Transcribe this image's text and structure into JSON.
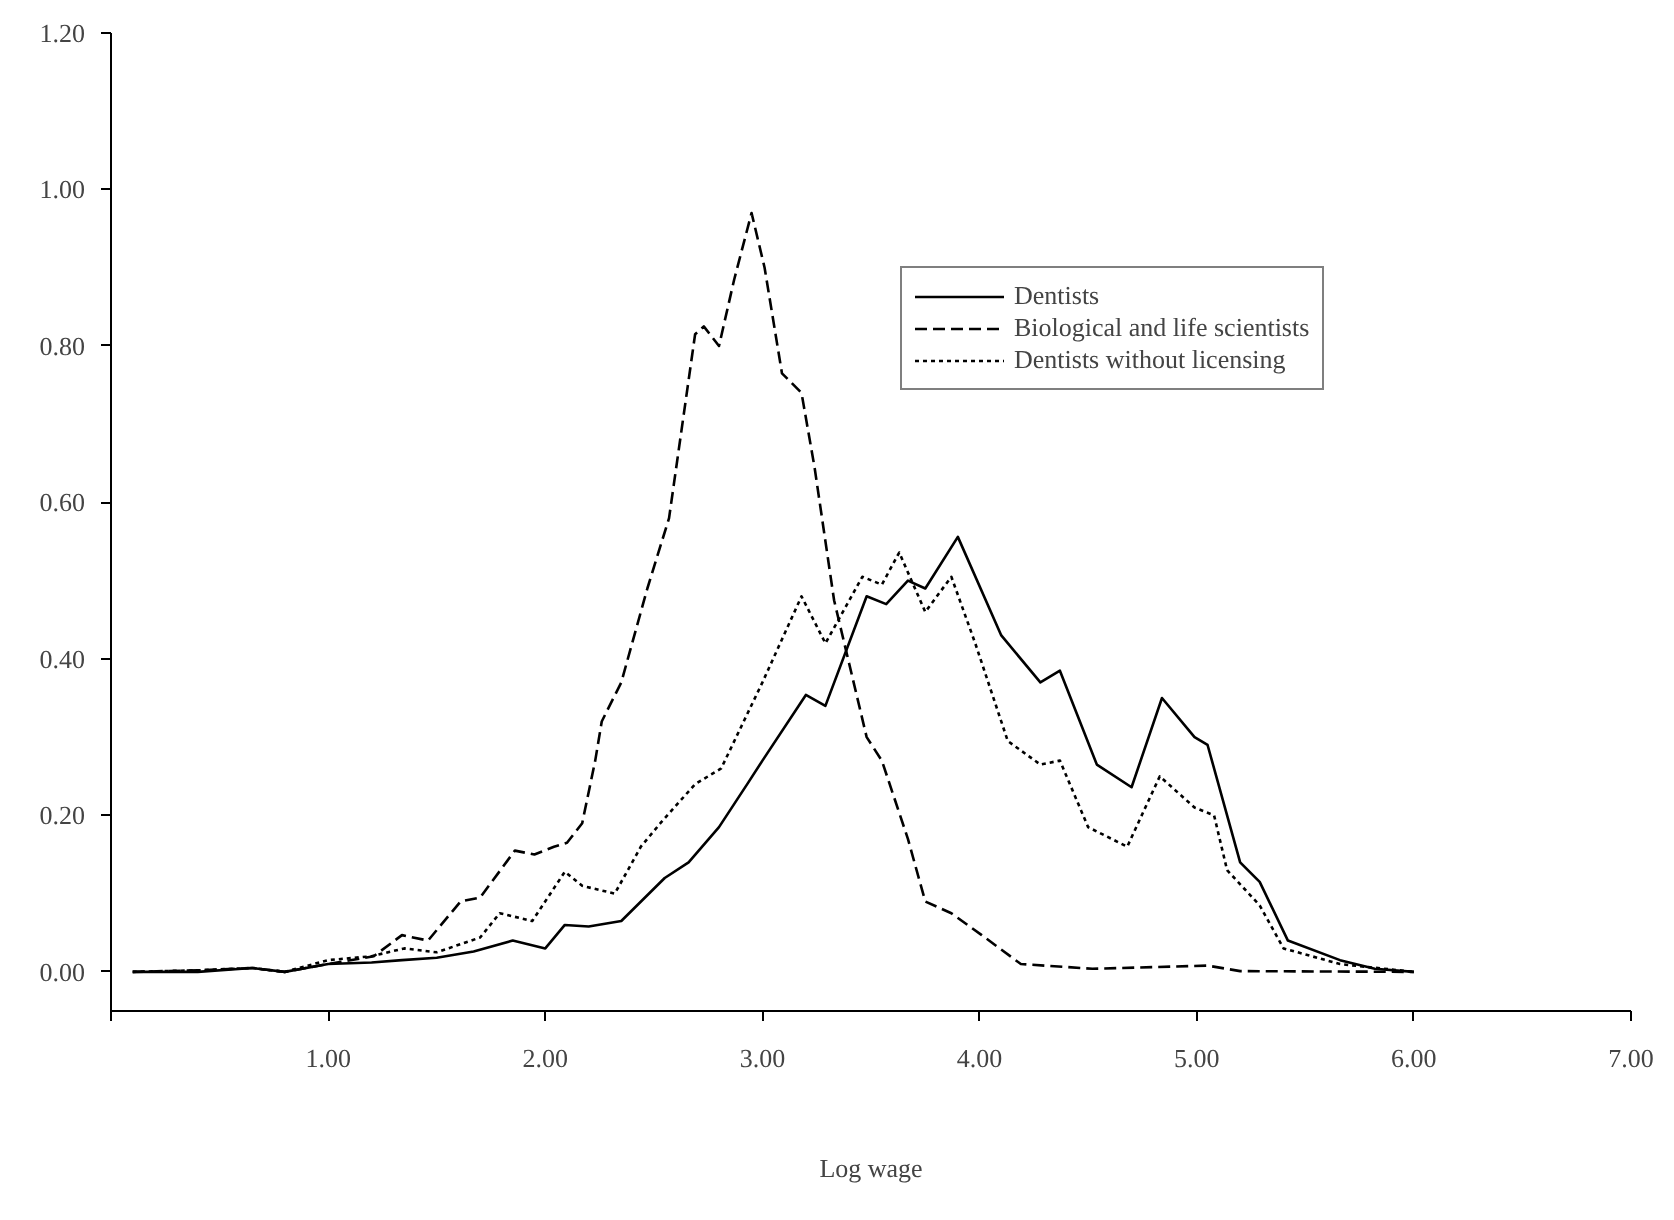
{
  "chart_data": {
    "type": "line",
    "xlabel": "Log wage",
    "xlim": [
      0,
      7
    ],
    "xticks": [
      {
        "value": 0,
        "label": null
      },
      {
        "value": 1,
        "label": "1.00"
      },
      {
        "value": 2,
        "label": "2.00"
      },
      {
        "value": 3,
        "label": "3.00"
      },
      {
        "value": 4,
        "label": "4.00"
      },
      {
        "value": 5,
        "label": "5.00"
      },
      {
        "value": 6,
        "label": "6.00"
      },
      {
        "value": 7,
        "label": "7.00"
      }
    ],
    "ylim": [
      -0.05,
      1.2
    ],
    "yticks": [
      {
        "value": 0,
        "label": "0.00"
      },
      {
        "value": 0.2,
        "label": "0.20"
      },
      {
        "value": 0.4,
        "label": "0.40"
      },
      {
        "value": 0.6,
        "label": "0.60"
      },
      {
        "value": 0.8,
        "label": "0.80"
      },
      {
        "value": 1.0,
        "label": "1.00"
      },
      {
        "value": 1.2,
        "label": "1.20"
      }
    ],
    "grid": false,
    "legend": "top right",
    "marker": "none",
    "series": [
      {
        "name": "Dentists",
        "color": "#000000",
        "line_style": "solid",
        "x": [
          0.1,
          0.4,
          0.65,
          0.8,
          1.0,
          1.2,
          1.34,
          1.5,
          1.67,
          1.85,
          2.0,
          2.09,
          2.2,
          2.35,
          2.55,
          2.66,
          2.8,
          2.93,
          3.0,
          3.2,
          3.29,
          3.48,
          3.57,
          3.67,
          3.75,
          3.9,
          4.1,
          4.28,
          4.37,
          4.54,
          4.7,
          4.84,
          4.99,
          5.05,
          5.2,
          5.29,
          5.42,
          5.66,
          5.82,
          6.0
        ],
        "values": [
          0.0,
          0.0,
          0.005,
          0.0,
          0.01,
          0.012,
          0.015,
          0.018,
          0.026,
          0.04,
          0.03,
          0.06,
          0.058,
          0.065,
          0.12,
          0.14,
          0.185,
          0.24,
          0.27,
          0.354,
          0.34,
          0.48,
          0.47,
          0.5,
          0.49,
          0.556,
          0.43,
          0.37,
          0.385,
          0.265,
          0.236,
          0.35,
          0.3,
          0.29,
          0.14,
          0.115,
          0.04,
          0.015,
          0.004,
          0.0
        ]
      },
      {
        "name": "Biological and life scientists",
        "color": "#000000",
        "line_style": "dashed",
        "x": [
          0.1,
          0.4,
          0.65,
          0.8,
          1.0,
          1.21,
          1.34,
          1.46,
          1.61,
          1.7,
          1.86,
          1.95,
          2.04,
          2.1,
          2.17,
          2.23,
          2.26,
          2.35,
          2.47,
          2.57,
          2.69,
          2.73,
          2.8,
          2.87,
          2.95,
          3.01,
          3.09,
          3.18,
          3.24,
          3.33,
          3.48,
          3.55,
          3.67,
          3.75,
          3.87,
          4.01,
          4.19,
          4.52,
          5.05,
          5.2,
          6.0
        ],
        "values": [
          0.0,
          0.002,
          0.005,
          0.0,
          0.01,
          0.02,
          0.047,
          0.04,
          0.09,
          0.095,
          0.155,
          0.15,
          0.16,
          0.165,
          0.19,
          0.27,
          0.32,
          0.37,
          0.49,
          0.58,
          0.815,
          0.825,
          0.8,
          0.885,
          0.97,
          0.9,
          0.765,
          0.74,
          0.645,
          0.475,
          0.3,
          0.27,
          0.17,
          0.09,
          0.075,
          0.047,
          0.01,
          0.004,
          0.008,
          0.001,
          0.0
        ]
      },
      {
        "name": "Dentists without licensing",
        "color": "#000000",
        "line_style": "dotted",
        "x": [
          0.1,
          0.4,
          0.65,
          0.8,
          1.0,
          1.2,
          1.35,
          1.5,
          1.7,
          1.79,
          1.94,
          2.09,
          2.17,
          2.32,
          2.44,
          2.53,
          2.69,
          2.81,
          3.0,
          3.18,
          3.29,
          3.46,
          3.55,
          3.63,
          3.75,
          3.87,
          3.98,
          4.13,
          4.28,
          4.37,
          4.5,
          4.68,
          4.83,
          4.99,
          5.08,
          5.14,
          5.29,
          5.4,
          5.66,
          6.0
        ],
        "values": [
          0.0,
          0.002,
          0.005,
          0.0,
          0.015,
          0.02,
          0.03,
          0.025,
          0.044,
          0.075,
          0.065,
          0.128,
          0.11,
          0.1,
          0.16,
          0.19,
          0.24,
          0.26,
          0.37,
          0.48,
          0.42,
          0.505,
          0.495,
          0.536,
          0.46,
          0.505,
          0.42,
          0.295,
          0.265,
          0.27,
          0.185,
          0.16,
          0.25,
          0.21,
          0.2,
          0.13,
          0.085,
          0.03,
          0.01,
          0.0
        ]
      }
    ]
  }
}
